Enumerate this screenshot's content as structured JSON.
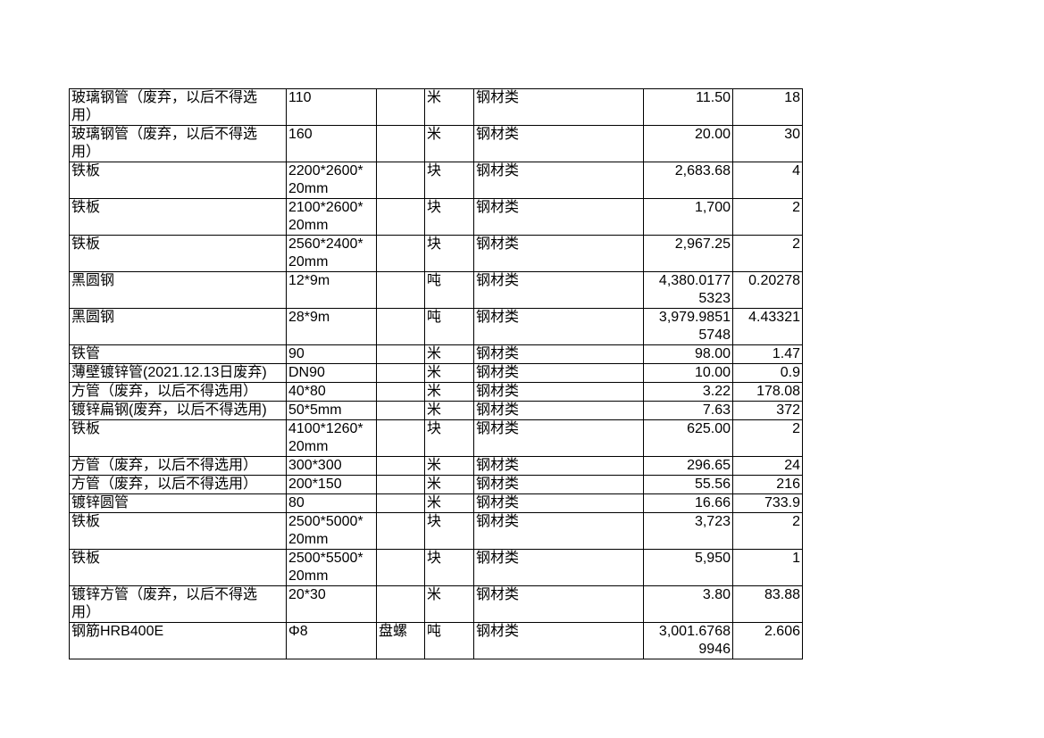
{
  "page": {
    "background_color": "#ffffff",
    "border_color": "#000000",
    "text_color": "#000000"
  },
  "table": {
    "column_keys": [
      "name",
      "spec",
      "type",
      "unit",
      "category",
      "price",
      "qty"
    ],
    "rows": [
      {
        "name": "玻璃钢管（废弃，以后不得选\n用）",
        "spec": "110",
        "type": "",
        "unit": "米",
        "category": "钢材类",
        "price": "11.50",
        "qty": "18"
      },
      {
        "name": "玻璃钢管（废弃，以后不得选\n用）",
        "spec": "160",
        "type": "",
        "unit": "米",
        "category": "钢材类",
        "price": "20.00",
        "qty": "30"
      },
      {
        "name": "铁板",
        "spec": "2200*2600*\n20mm",
        "type": "",
        "unit": "块",
        "category": "钢材类",
        "price": "2,683.68",
        "qty": "4"
      },
      {
        "name": "铁板",
        "spec": "2100*2600*\n20mm",
        "type": "",
        "unit": "块",
        "category": "钢材类",
        "price": "1,700",
        "qty": "2"
      },
      {
        "name": "铁板",
        "spec": "2560*2400*\n20mm",
        "type": "",
        "unit": "块",
        "category": "钢材类",
        "price": "2,967.25",
        "qty": "2"
      },
      {
        "name": "黑圆钢",
        "spec": "12*9m",
        "type": "",
        "unit": "吨",
        "category": "钢材类",
        "price": "4,380.0177\n5323",
        "qty": "0.20278"
      },
      {
        "name": "黑圆钢",
        "spec": "28*9m",
        "type": "",
        "unit": "吨",
        "category": "钢材类",
        "price": "3,979.9851\n5748",
        "qty": "4.43321"
      },
      {
        "name": "铁管",
        "spec": "90",
        "type": "",
        "unit": "米",
        "category": "钢材类",
        "price": "98.00",
        "qty": "1.47"
      },
      {
        "name": "薄壁镀锌管(2021.12.13日废弃)",
        "spec": "DN90",
        "type": "",
        "unit": "米",
        "category": "钢材类",
        "price": "10.00",
        "qty": "0.9"
      },
      {
        "name": "方管（废弃，以后不得选用）",
        "spec": "40*80",
        "type": "",
        "unit": "米",
        "category": "钢材类",
        "price": "3.22",
        "qty": "178.08"
      },
      {
        "name": "镀锌扁钢(废弃，以后不得选用)",
        "spec": "50*5mm",
        "type": "",
        "unit": "米",
        "category": "钢材类",
        "price": "7.63",
        "qty": "372"
      },
      {
        "name": "铁板",
        "spec": "4100*1260*\n20mm",
        "type": "",
        "unit": "块",
        "category": "钢材类",
        "price": "625.00",
        "qty": "2"
      },
      {
        "name": "方管（废弃，以后不得选用）",
        "spec": "300*300",
        "type": "",
        "unit": "米",
        "category": "钢材类",
        "price": "296.65",
        "qty": "24"
      },
      {
        "name": "方管（废弃，以后不得选用）",
        "spec": "200*150",
        "type": "",
        "unit": "米",
        "category": "钢材类",
        "price": "55.56",
        "qty": "216"
      },
      {
        "name": "镀锌圆管",
        "spec": "80",
        "type": "",
        "unit": "米",
        "category": "钢材类",
        "price": "16.66",
        "qty": "733.9"
      },
      {
        "name": "铁板",
        "spec": "2500*5000*\n20mm",
        "type": "",
        "unit": "块",
        "category": "钢材类",
        "price": "3,723",
        "qty": "2"
      },
      {
        "name": "铁板",
        "spec": "2500*5500*\n20mm",
        "type": "",
        "unit": "块",
        "category": "钢材类",
        "price": "5,950",
        "qty": "1"
      },
      {
        "name": "镀锌方管（废弃，以后不得选\n用）",
        "spec": "20*30",
        "type": "",
        "unit": "米",
        "category": "钢材类",
        "price": "3.80",
        "qty": "83.88"
      },
      {
        "name": "钢筋HRB400E",
        "spec": "Φ8",
        "type": "盘螺",
        "unit": "吨",
        "category": "钢材类",
        "price": "3,001.6768\n9946",
        "qty": "2.606"
      }
    ]
  }
}
